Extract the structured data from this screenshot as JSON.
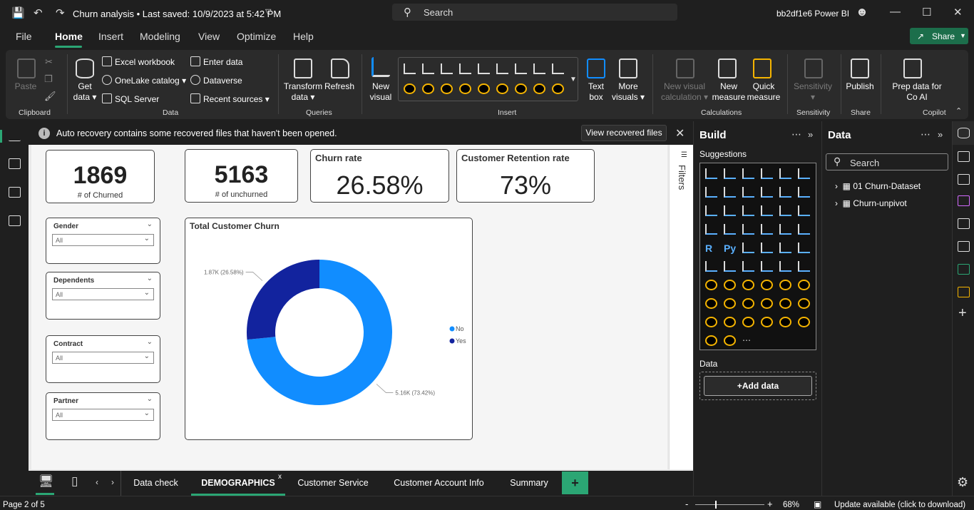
{
  "titlebar": {
    "title": "Churn analysis • Last saved: 10/9/2023 at 5:42 PM",
    "search_placeholder": "Search",
    "account": "bb2df1e6 Power BI"
  },
  "menu": {
    "tabs": [
      "File",
      "Home",
      "Insert",
      "Modeling",
      "View",
      "Optimize",
      "Help"
    ],
    "share": "Share"
  },
  "ribbon": {
    "clipboard": {
      "paste": "Paste",
      "group": "Clipboard"
    },
    "data": {
      "get_data": "Get data",
      "excel": "Excel workbook",
      "onelake": "OneLake catalog",
      "sql": "SQL Server",
      "enter": "Enter data",
      "dataverse": "Dataverse",
      "recent": "Recent sources",
      "group": "Data"
    },
    "queries": {
      "transform": "Transform data",
      "refresh": "Refresh",
      "group": "Queries"
    },
    "insert": {
      "new_visual": "New visual",
      "text_box": "Text box",
      "more_visuals": "More visuals",
      "group": "Insert"
    },
    "calculations": {
      "new_visual_calc": "New visual calculation",
      "new_measure": "New measure",
      "quick_measure": "Quick measure",
      "group": "Calculations"
    },
    "sensitivity": {
      "label": "Sensitivity",
      "group": "Sensitivity"
    },
    "share": {
      "publish": "Publish",
      "group": "Share"
    },
    "copilot": {
      "prep": "Prep data for Co AI",
      "group": "Copilot"
    }
  },
  "notice": {
    "message": "Auto recovery contains some recovered files that haven't been opened.",
    "button": "View recovered files"
  },
  "report": {
    "kpi1": {
      "value": "1869",
      "label": "# of Churned"
    },
    "kpi2": {
      "value": "5163",
      "label": "# of unchurned"
    },
    "churn_rate": {
      "title": "Churn rate",
      "value": "26.58%"
    },
    "retention": {
      "title": "Customer Retention rate",
      "value": "73%"
    },
    "slicers": [
      {
        "title": "Gender",
        "value": "All"
      },
      {
        "title": "Dependents",
        "value": "All"
      },
      {
        "title": "Contract",
        "value": "All"
      },
      {
        "title": "Partner",
        "value": "All"
      }
    ],
    "filters_label": "Filters"
  },
  "chart_data": {
    "type": "pie",
    "title": "Total Customer Churn",
    "donut": true,
    "series": [
      {
        "name": "No",
        "value": 5163,
        "label": "5.16K (73.42%)",
        "color": "#118dff"
      },
      {
        "name": "Yes",
        "value": 1869,
        "label": "1.87K (26.58%)",
        "color": "#12239e"
      }
    ],
    "legend": "right"
  },
  "build": {
    "title": "Build",
    "suggestions": "Suggestions",
    "data_label": "Data",
    "add_data": "+Add data"
  },
  "data_pane": {
    "title": "Data",
    "search_placeholder": "Search",
    "tables": [
      "01 Churn-Dataset",
      "Churn-unpivot"
    ]
  },
  "pages": {
    "tabs": [
      "Data check",
      "DEMOGRAPHICS",
      "Customer Service",
      "Customer Account Info",
      "Summary"
    ],
    "active": "DEMOGRAPHICS",
    "add": "+"
  },
  "status": {
    "page": "Page 2 of 5",
    "zoom": "68%",
    "update": "Update available (click to download)"
  },
  "colors": {
    "accent": "#2ba674",
    "no": "#118dff",
    "yes": "#12239e"
  }
}
